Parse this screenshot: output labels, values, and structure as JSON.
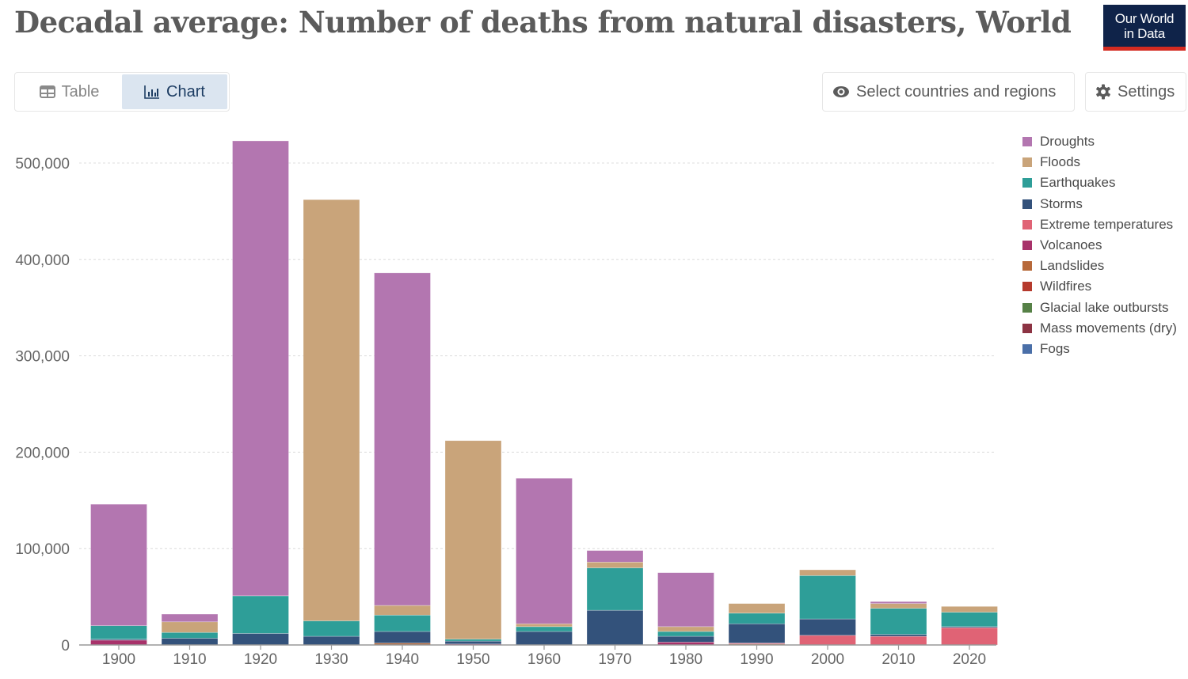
{
  "header": {
    "title": "Decadal average: Number of deaths from natural disasters, World",
    "logo_line1": "Our World",
    "logo_line2": "in Data"
  },
  "tabs": [
    {
      "label": "Table",
      "icon": "table-icon",
      "active": false
    },
    {
      "label": "Chart",
      "icon": "bar-chart-icon",
      "active": true
    }
  ],
  "controls": {
    "select_label": "Select countries and regions",
    "select_icon": "eye-icon",
    "settings_label": "Settings",
    "settings_icon": "gear-icon"
  },
  "chart_data": {
    "type": "bar",
    "stacked": true,
    "title": "Decadal average: Number of deaths from natural disasters, World",
    "xlabel": "",
    "ylabel": "",
    "ylim": [
      0,
      520000
    ],
    "yticks": [
      0,
      100000,
      200000,
      300000,
      400000,
      500000
    ],
    "ytick_labels": [
      "0",
      "100,000",
      "200,000",
      "300,000",
      "400,000",
      "500,000"
    ],
    "grid": true,
    "legend_position": "right",
    "categories": [
      "1900",
      "1910",
      "1920",
      "1930",
      "1940",
      "1950",
      "1960",
      "1970",
      "1980",
      "1990",
      "2000",
      "2010",
      "2020"
    ],
    "series": [
      {
        "name": "Droughts",
        "color": "#b376b0",
        "values": [
          126000,
          8000,
          472000,
          0,
          345000,
          0,
          151000,
          12000,
          56000,
          0,
          0,
          2000,
          0
        ]
      },
      {
        "name": "Floods",
        "color": "#c9a47a",
        "values": [
          0,
          11000,
          0,
          437000,
          10000,
          206000,
          3000,
          6000,
          5000,
          10000,
          6000,
          5000,
          6000
        ]
      },
      {
        "name": "Earthquakes",
        "color": "#2e9e98",
        "values": [
          14000,
          6000,
          39000,
          16000,
          17000,
          2000,
          5000,
          44000,
          5000,
          11000,
          45000,
          27000,
          15000
        ]
      },
      {
        "name": "Storms",
        "color": "#33527b",
        "values": [
          1000,
          7000,
          12000,
          9000,
          12000,
          3000,
          14000,
          36000,
          6000,
          20000,
          17000,
          2000,
          1000
        ]
      },
      {
        "name": "Extreme temperatures",
        "color": "#e06375",
        "values": [
          0,
          0,
          0,
          0,
          0,
          0,
          0,
          0,
          0,
          1000,
          10000,
          9000,
          18000
        ]
      },
      {
        "name": "Volcanoes",
        "color": "#a8326a",
        "values": [
          5000,
          0,
          0,
          0,
          0,
          1000,
          0,
          0,
          3000,
          0,
          0,
          0,
          0
        ]
      },
      {
        "name": "Landslides",
        "color": "#b7693a",
        "values": [
          0,
          0,
          0,
          0,
          2000,
          0,
          0,
          0,
          0,
          1000,
          0,
          0,
          0
        ]
      },
      {
        "name": "Wildfires",
        "color": "#b53a2d",
        "values": [
          0,
          0,
          0,
          0,
          0,
          0,
          0,
          0,
          0,
          0,
          0,
          0,
          0
        ]
      },
      {
        "name": "Glacial lake outbursts",
        "color": "#568147",
        "values": [
          0,
          0,
          0,
          0,
          0,
          0,
          0,
          0,
          0,
          0,
          0,
          0,
          0
        ]
      },
      {
        "name": "Mass movements (dry)",
        "color": "#8c3343",
        "values": [
          0,
          0,
          0,
          0,
          0,
          0,
          0,
          0,
          0,
          0,
          0,
          0,
          0
        ]
      },
      {
        "name": "Fogs",
        "color": "#4a6fa8",
        "values": [
          0,
          0,
          0,
          0,
          0,
          0,
          0,
          0,
          0,
          0,
          0,
          0,
          0
        ]
      }
    ],
    "stack_order_bottom_to_top": [
      "Fogs",
      "Mass movements (dry)",
      "Glacial lake outbursts",
      "Wildfires",
      "Landslides",
      "Volcanoes",
      "Extreme temperatures",
      "Storms",
      "Earthquakes",
      "Floods",
      "Droughts"
    ]
  }
}
